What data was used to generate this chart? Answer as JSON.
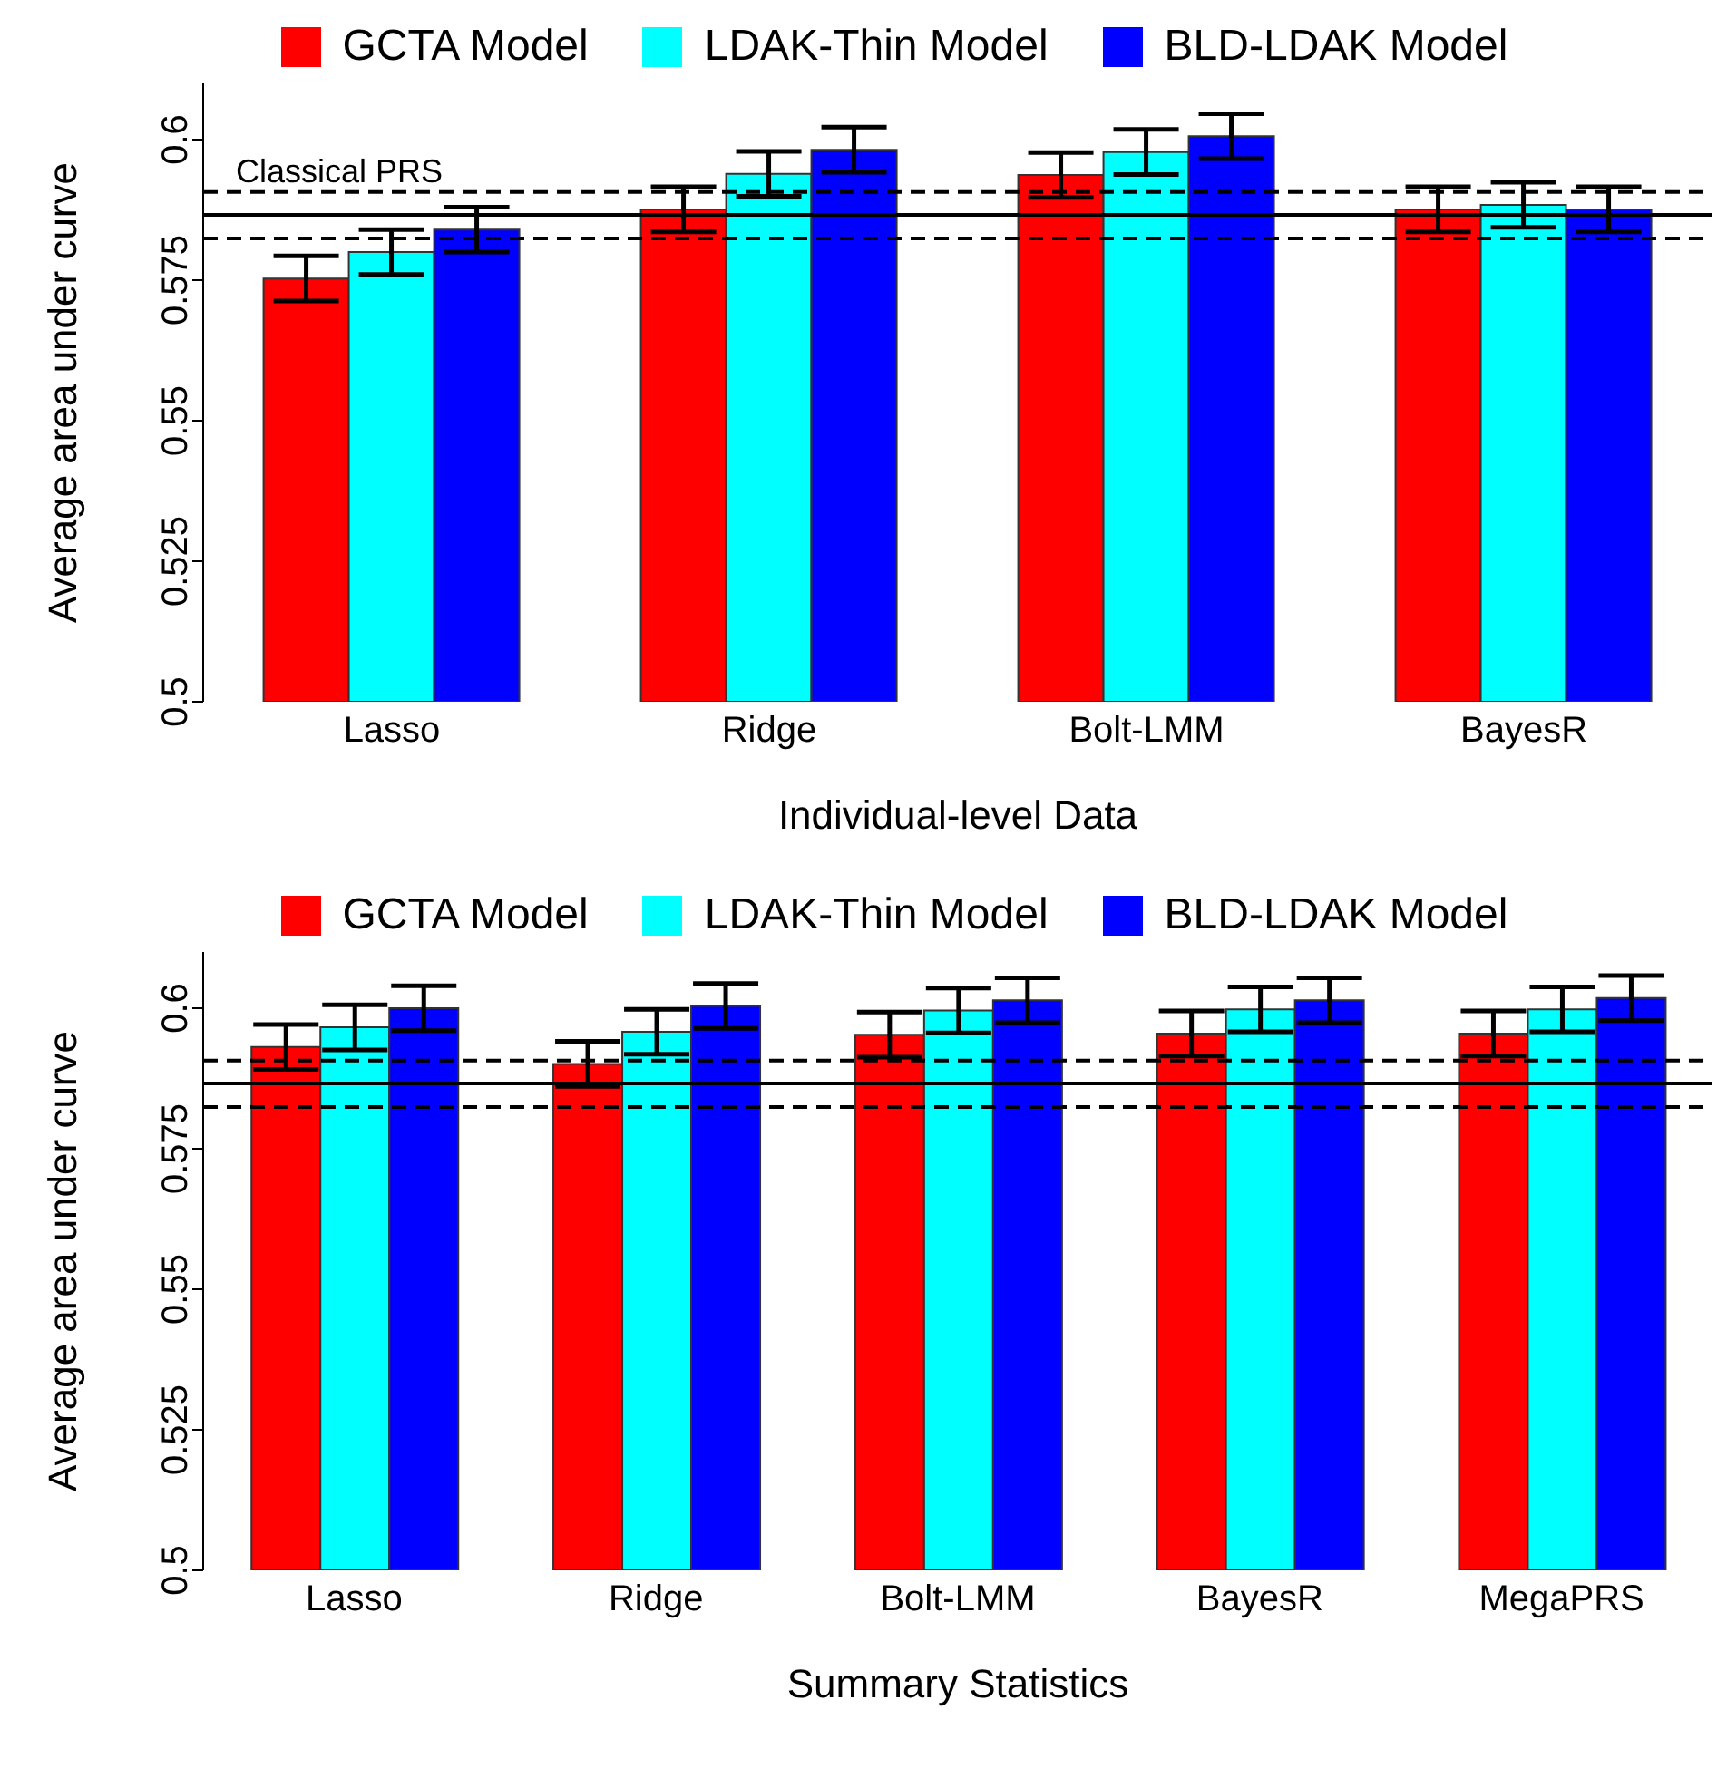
{
  "chart_data": [
    {
      "type": "bar",
      "xlabel": "Individual-level Data",
      "ylabel": "Average area under curve",
      "categories": [
        "Lasso",
        "Ridge",
        "Bolt-LMM",
        "BayesR"
      ],
      "series": [
        {
          "name": "GCTA Model",
          "color": "#ff0000",
          "values": [
            0.5753,
            0.5876,
            0.5937,
            0.5876
          ],
          "errors": [
            0.004,
            0.004,
            0.004,
            0.004
          ]
        },
        {
          "name": "LDAK-Thin Model",
          "color": "#00ffff",
          "values": [
            0.58,
            0.5939,
            0.5978,
            0.5884
          ],
          "errors": [
            0.004,
            0.004,
            0.004,
            0.004
          ]
        },
        {
          "name": "BLD-LDAK Model",
          "color": "#0000ff",
          "values": [
            0.584,
            0.5982,
            0.6006,
            0.5876
          ],
          "errors": [
            0.004,
            0.004,
            0.004,
            0.004
          ]
        }
      ],
      "ylim": [
        0.5,
        0.61
      ],
      "yticks": [
        0.5,
        0.525,
        0.55,
        0.575,
        0.6
      ],
      "grid": false,
      "legend": "top",
      "ref_lines": [
        {
          "axis": "y",
          "value": 0.5866,
          "label": "Classical PRS",
          "line_style": "solid",
          "color": "#000000"
        },
        {
          "axis": "y",
          "value": 0.5907,
          "line_style": "dashed",
          "color": "#000000"
        },
        {
          "axis": "y",
          "value": 0.5824,
          "line_style": "dashed",
          "color": "#000000"
        }
      ]
    },
    {
      "type": "bar",
      "xlabel": "Summary Statistics",
      "ylabel": "Average area under curve",
      "categories": [
        "Lasso",
        "Ridge",
        "Bolt-LMM",
        "BayesR",
        "MegaPRS"
      ],
      "series": [
        {
          "name": "GCTA Model",
          "color": "#ff0000",
          "values": [
            0.5931,
            0.5901,
            0.5953,
            0.5955,
            0.5955
          ],
          "errors": [
            0.004,
            0.004,
            0.004,
            0.004,
            0.004
          ]
        },
        {
          "name": "LDAK-Thin Model",
          "color": "#00ffff",
          "values": [
            0.5966,
            0.5958,
            0.5996,
            0.5998,
            0.5998
          ],
          "errors": [
            0.004,
            0.004,
            0.004,
            0.004,
            0.004
          ]
        },
        {
          "name": "BLD-LDAK Model",
          "color": "#0000ff",
          "values": [
            0.6,
            0.6004,
            0.6014,
            0.6014,
            0.6018
          ],
          "errors": [
            0.004,
            0.004,
            0.004,
            0.004,
            0.004
          ]
        }
      ],
      "ylim": [
        0.5,
        0.61
      ],
      "yticks": [
        0.5,
        0.525,
        0.55,
        0.575,
        0.6
      ],
      "grid": false,
      "legend": "top",
      "ref_lines": [
        {
          "axis": "y",
          "value": 0.5866,
          "line_style": "solid",
          "color": "#000000"
        },
        {
          "axis": "y",
          "value": 0.5907,
          "line_style": "dashed",
          "color": "#000000"
        },
        {
          "axis": "y",
          "value": 0.5824,
          "line_style": "dashed",
          "color": "#000000"
        }
      ]
    }
  ]
}
